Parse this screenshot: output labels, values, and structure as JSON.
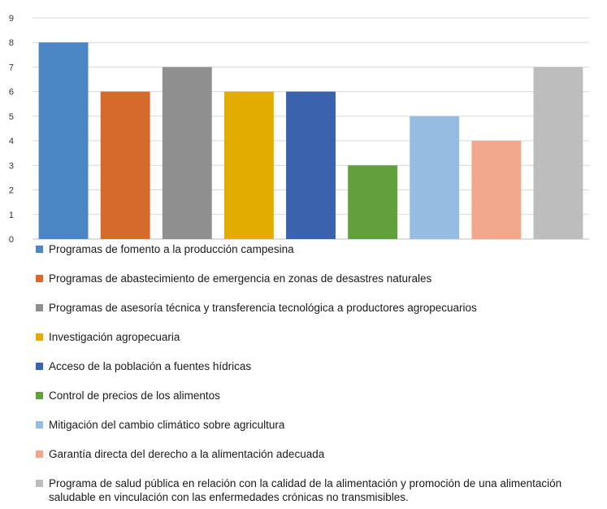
{
  "chart_data": {
    "type": "bar",
    "ylim": [
      0,
      9
    ],
    "yticks": [
      0,
      1,
      2,
      3,
      4,
      5,
      6,
      7,
      8,
      9
    ],
    "grid": true,
    "legend_position": "bottom",
    "categories": [
      "Programas de fomento a la producción campesina",
      "Programas de abastecimiento de emergencia en zonas de desastres naturales",
      "Programas de asesoría técnica y transferencia tecnológica a productores agropecuarios",
      "Investigación agropecuaria",
      "Acceso de la población a fuentes hídricas",
      "Control de precios de los alimentos",
      "Mitigación del cambio climático sobre agricultura",
      "Garantía directa del derecho a la alimentación adecuada",
      "Programa de salud pública en relación con la calidad de la alimentación y promoción de una alimentación saludable en vinculación con las enfermedades crónicas no transmisibles."
    ],
    "values": [
      8,
      6,
      7,
      6,
      6,
      3,
      5,
      4,
      7
    ],
    "colors": [
      "#4a86c4",
      "#d56a2c",
      "#8f8f8f",
      "#e3ad00",
      "#3a62ad",
      "#62a03e",
      "#97bce2",
      "#f0a78c",
      "#bdbdbd"
    ]
  }
}
